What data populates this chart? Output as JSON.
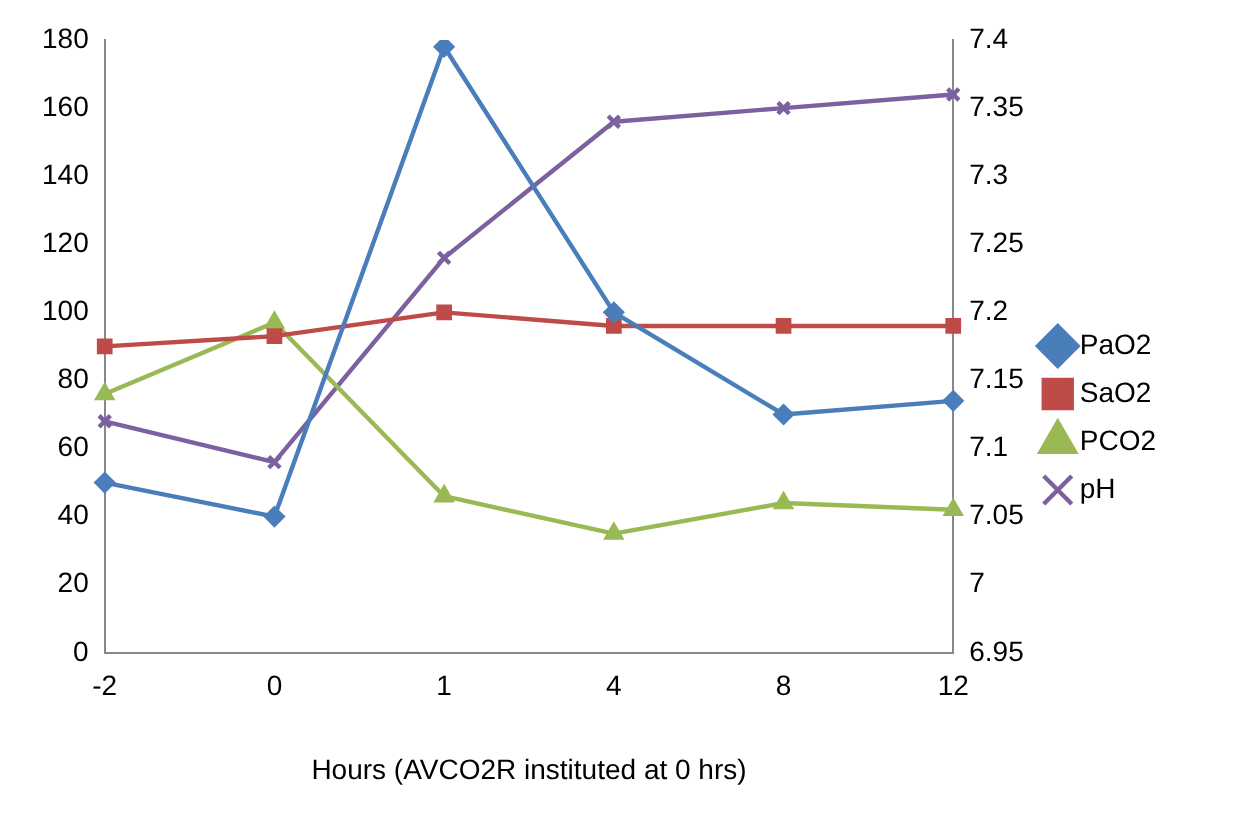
{
  "chart_data": {
    "type": "line",
    "xlabel": "Hours (AVCO2R instituted at 0 hrs)",
    "categories": [
      "-2",
      "0",
      "1",
      "4",
      "8",
      "12"
    ],
    "series": [
      {
        "name": "PaO2",
        "color": "#4a7ebb",
        "marker": "diamond",
        "values": [
          50,
          40,
          178,
          100,
          70,
          74
        ]
      },
      {
        "name": "SaO2",
        "color": "#be4b48",
        "marker": "square",
        "values": [
          90,
          93,
          100,
          96,
          96,
          96
        ]
      },
      {
        "name": "PCO2",
        "color": "#98b954",
        "marker": "triangle",
        "values": [
          76,
          97,
          46,
          35,
          44,
          42
        ]
      },
      {
        "name": "pH",
        "color": "#7d60a0",
        "marker": "cross",
        "axis": "y2",
        "values": [
          7.12,
          7.09,
          7.24,
          7.34,
          7.35,
          7.36
        ]
      }
    ],
    "ylim": [
      0,
      180
    ],
    "yticks": [
      0,
      20,
      40,
      60,
      80,
      100,
      120,
      140,
      160,
      180
    ],
    "y2lim": [
      6.95,
      7.4
    ],
    "y2ticks": [
      6.95,
      7,
      7.05,
      7.1,
      7.15,
      7.2,
      7.25,
      7.3,
      7.35,
      7.4
    ],
    "grid": false,
    "legend": "right"
  }
}
